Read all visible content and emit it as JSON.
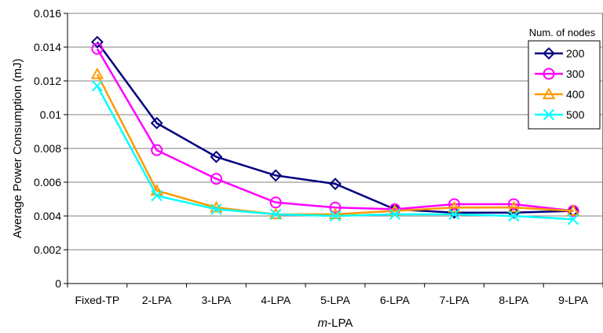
{
  "chart_data": {
    "type": "line",
    "xlabel_prefix": "m",
    "xlabel_suffix": "-LPA",
    "ylabel": "Average Power Consumption (mJ)",
    "categories": [
      "Fixed-TP",
      "2-LPA",
      "3-LPA",
      "4-LPA",
      "5-LPA",
      "6-LPA",
      "7-LPA",
      "8-LPA",
      "9-LPA"
    ],
    "ylim": [
      0,
      0.016
    ],
    "yticks": [
      0,
      0.002,
      0.004,
      0.006,
      0.008,
      0.01,
      0.012,
      0.014,
      0.016
    ],
    "ytick_labels": [
      "0",
      "0.002",
      "0.004",
      "0.006",
      "0.008",
      "0.01",
      "0.012",
      "0.014",
      "0.016"
    ],
    "grid": true,
    "legend_title": "Num. of nodes",
    "legend_position": "top-right",
    "series": [
      {
        "name": "200",
        "color": "#00007f",
        "marker": "diamond",
        "values": [
          0.0143,
          0.0095,
          0.0075,
          0.0064,
          0.0059,
          0.0044,
          0.0042,
          0.0042,
          0.0043
        ]
      },
      {
        "name": "300",
        "color": "#ff00ff",
        "marker": "circle",
        "values": [
          0.0139,
          0.0079,
          0.0062,
          0.0048,
          0.0045,
          0.0044,
          0.0047,
          0.0047,
          0.0043
        ]
      },
      {
        "name": "400",
        "color": "#ff9900",
        "marker": "triangle",
        "values": [
          0.0124,
          0.0055,
          0.0045,
          0.0041,
          0.0041,
          0.0043,
          0.0045,
          0.0045,
          0.0043
        ]
      },
      {
        "name": "500",
        "color": "#00ffff",
        "marker": "x",
        "values": [
          0.0117,
          0.0052,
          0.0044,
          0.0041,
          0.004,
          0.0041,
          0.0041,
          0.004,
          0.0038
        ]
      }
    ]
  }
}
